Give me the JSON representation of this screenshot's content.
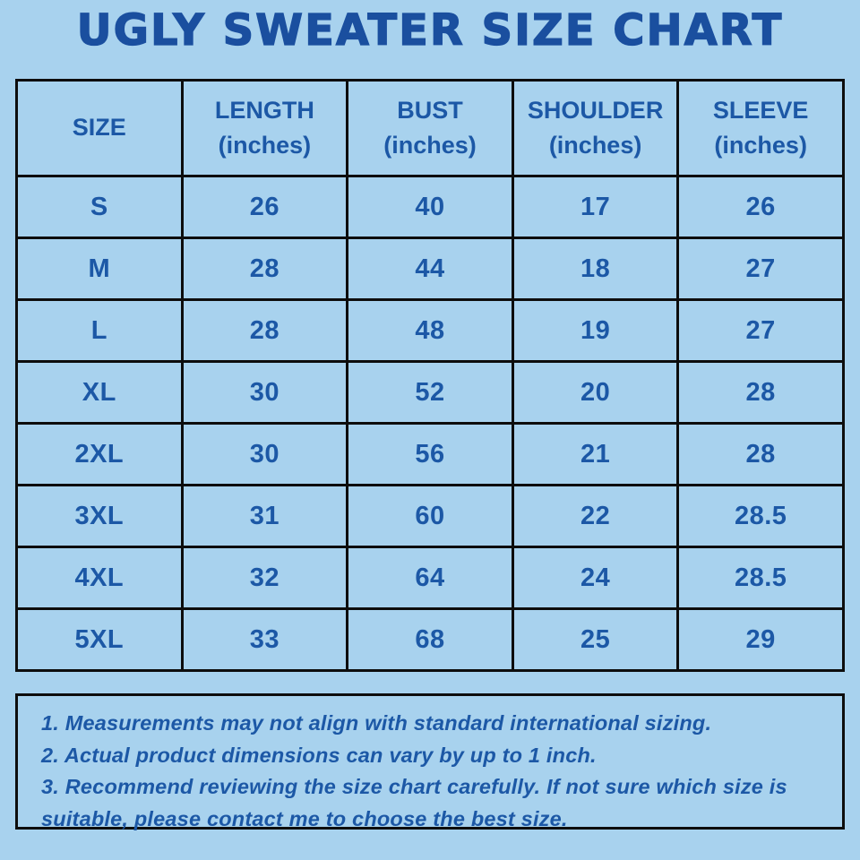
{
  "title": "UGLY SWEATER SIZE CHART",
  "colors": {
    "background": "#a8d2ee",
    "text_blue": "#1c58a6",
    "title_blue": "#1a4f9f",
    "border_black": "#0d0d0d"
  },
  "header_cells": [
    {
      "label": "SIZE",
      "sub": ""
    },
    {
      "label": "LENGTH",
      "sub": "(inches)"
    },
    {
      "label": "BUST",
      "sub": "(inches)"
    },
    {
      "label": "SHOULDER",
      "sub": "(inches)"
    },
    {
      "label": "SLEEVE",
      "sub": "(inches)"
    }
  ],
  "chart_data": {
    "type": "table",
    "title": "UGLY SWEATER SIZE CHART",
    "columns": [
      "SIZE",
      "LENGTH (inches)",
      "BUST (inches)",
      "SHOULDER (inches)",
      "SLEEVE (inches)"
    ],
    "rows": [
      [
        "S",
        26,
        40,
        17,
        26
      ],
      [
        "M",
        28,
        44,
        18,
        27
      ],
      [
        "L",
        28,
        48,
        19,
        27
      ],
      [
        "XL",
        30,
        52,
        20,
        28
      ],
      [
        "2XL",
        30,
        56,
        21,
        28
      ],
      [
        "3XL",
        31,
        60,
        22,
        28.5
      ],
      [
        "4XL",
        32,
        64,
        24,
        28.5
      ],
      [
        "5XL",
        33,
        68,
        25,
        29
      ]
    ]
  },
  "notes": [
    "1. Measurements may not align with standard international sizing.",
    "2. Actual product dimensions can vary by up to 1 inch.",
    "3. Recommend reviewing the size chart carefully. If not sure which size is suitable, please contact me to choose the best size."
  ]
}
